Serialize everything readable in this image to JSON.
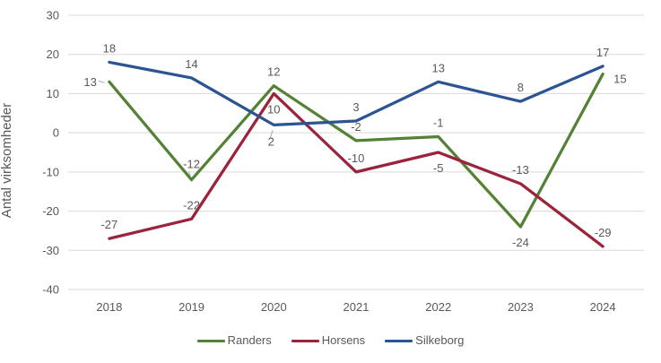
{
  "chart_data": {
    "type": "line",
    "ylabel": "Antal virksomheder",
    "categories": [
      "2018",
      "2019",
      "2020",
      "2021",
      "2022",
      "2023",
      "2024"
    ],
    "series": [
      {
        "name": "Randers",
        "color": "#548235",
        "values": [
          13,
          -12,
          12,
          -2,
          -1,
          -24,
          15
        ],
        "label_pos": [
          "left-leader",
          "above-leader",
          "above",
          "above",
          "above",
          "below",
          "right"
        ]
      },
      {
        "name": "Horsens",
        "color": "#9B233C",
        "values": [
          -27,
          -22,
          10,
          -10,
          -5,
          -13,
          -29
        ],
        "label_pos": [
          "above",
          "above",
          "below",
          "above",
          "below",
          "above",
          "above"
        ]
      },
      {
        "name": "Silkeborg",
        "color": "#2B5592",
        "values": [
          18,
          14,
          2,
          3,
          13,
          8,
          17
        ],
        "label_pos": [
          "above",
          "above",
          "below-leader",
          "above",
          "above",
          "above",
          "above"
        ]
      }
    ],
    "ylim": [
      -40,
      30
    ],
    "ytick_step": 10,
    "grid": true,
    "legend_position": "bottom"
  },
  "colors": {
    "background": "#FFFFFF",
    "grid": "#D9D9D9",
    "axis_text": "#595959",
    "data_label_text": "#595959",
    "leader_line": "#A6A6A6"
  }
}
